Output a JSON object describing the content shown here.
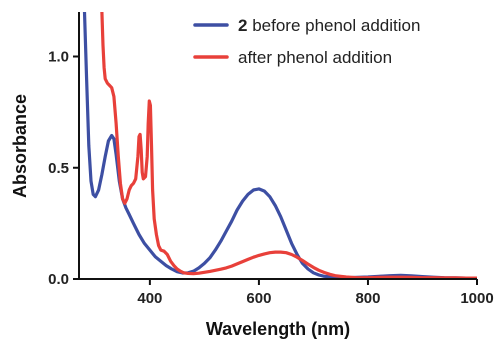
{
  "chart_data": {
    "type": "line",
    "xlabel": "Wavelength (nm)",
    "ylabel": "Absorbance",
    "xlim": [
      270,
      1000
    ],
    "ylim": [
      0,
      1.2
    ],
    "x_ticks": [
      {
        "value": 400,
        "label": "400"
      },
      {
        "value": 600,
        "label": "600"
      },
      {
        "value": 800,
        "label": "800"
      },
      {
        "value": 1000,
        "label": "1000"
      }
    ],
    "y_ticks": [
      {
        "value": 0,
        "label": "0.0"
      },
      {
        "value": 0.5,
        "label": "0.5"
      },
      {
        "value": 1.0,
        "label": "1.0"
      }
    ],
    "grid": false,
    "legend": {
      "placement": "top-right",
      "entries": [
        {
          "prefix": "2",
          "text": " before phenol addition",
          "color": "#3d4fa3"
        },
        {
          "prefix": "",
          "text": "after phenol addition",
          "color": "#e8403a"
        }
      ]
    },
    "series": [
      {
        "color": "#3d4fa3",
        "points": [
          [
            280,
            1.2
          ],
          [
            284,
            0.9
          ],
          [
            288,
            0.6
          ],
          [
            292,
            0.44
          ],
          [
            296,
            0.38
          ],
          [
            300,
            0.37
          ],
          [
            306,
            0.4
          ],
          [
            312,
            0.47
          ],
          [
            318,
            0.55
          ],
          [
            324,
            0.62
          ],
          [
            330,
            0.645
          ],
          [
            334,
            0.63
          ],
          [
            338,
            0.56
          ],
          [
            344,
            0.44
          ],
          [
            350,
            0.36
          ],
          [
            356,
            0.32
          ],
          [
            362,
            0.29
          ],
          [
            370,
            0.25
          ],
          [
            380,
            0.2
          ],
          [
            390,
            0.16
          ],
          [
            400,
            0.13
          ],
          [
            410,
            0.1
          ],
          [
            420,
            0.08
          ],
          [
            430,
            0.06
          ],
          [
            440,
            0.045
          ],
          [
            450,
            0.033
          ],
          [
            460,
            0.027
          ],
          [
            470,
            0.028
          ],
          [
            480,
            0.035
          ],
          [
            490,
            0.05
          ],
          [
            500,
            0.07
          ],
          [
            510,
            0.095
          ],
          [
            520,
            0.13
          ],
          [
            530,
            0.17
          ],
          [
            540,
            0.215
          ],
          [
            550,
            0.26
          ],
          [
            560,
            0.31
          ],
          [
            570,
            0.35
          ],
          [
            580,
            0.38
          ],
          [
            590,
            0.4
          ],
          [
            600,
            0.405
          ],
          [
            610,
            0.395
          ],
          [
            620,
            0.37
          ],
          [
            630,
            0.33
          ],
          [
            640,
            0.28
          ],
          [
            650,
            0.22
          ],
          [
            660,
            0.16
          ],
          [
            670,
            0.11
          ],
          [
            680,
            0.07
          ],
          [
            690,
            0.045
          ],
          [
            700,
            0.028
          ],
          [
            710,
            0.018
          ],
          [
            720,
            0.012
          ],
          [
            740,
            0.008
          ],
          [
            760,
            0.006
          ],
          [
            780,
            0.007
          ],
          [
            800,
            0.009
          ],
          [
            820,
            0.012
          ],
          [
            840,
            0.015
          ],
          [
            860,
            0.016
          ],
          [
            880,
            0.014
          ],
          [
            900,
            0.011
          ],
          [
            920,
            0.008
          ],
          [
            940,
            0.006
          ],
          [
            960,
            0.005
          ],
          [
            980,
            0.004
          ],
          [
            1000,
            0.004
          ]
        ]
      },
      {
        "color": "#e8403a",
        "points": [
          [
            312,
            1.2
          ],
          [
            314,
            1.05
          ],
          [
            316,
            0.95
          ],
          [
            318,
            0.9
          ],
          [
            322,
            0.88
          ],
          [
            326,
            0.87
          ],
          [
            330,
            0.86
          ],
          [
            334,
            0.82
          ],
          [
            338,
            0.7
          ],
          [
            342,
            0.55
          ],
          [
            346,
            0.43
          ],
          [
            350,
            0.36
          ],
          [
            354,
            0.34
          ],
          [
            358,
            0.36
          ],
          [
            362,
            0.4
          ],
          [
            366,
            0.42
          ],
          [
            370,
            0.43
          ],
          [
            374,
            0.45
          ],
          [
            378,
            0.55
          ],
          [
            380,
            0.64
          ],
          [
            382,
            0.65
          ],
          [
            384,
            0.58
          ],
          [
            386,
            0.48
          ],
          [
            388,
            0.45
          ],
          [
            392,
            0.46
          ],
          [
            395,
            0.55
          ],
          [
            397,
            0.7
          ],
          [
            399,
            0.8
          ],
          [
            401,
            0.78
          ],
          [
            403,
            0.6
          ],
          [
            405,
            0.4
          ],
          [
            408,
            0.27
          ],
          [
            412,
            0.2
          ],
          [
            416,
            0.15
          ],
          [
            420,
            0.13
          ],
          [
            426,
            0.125
          ],
          [
            432,
            0.11
          ],
          [
            438,
            0.08
          ],
          [
            444,
            0.06
          ],
          [
            450,
            0.045
          ],
          [
            456,
            0.035
          ],
          [
            462,
            0.028
          ],
          [
            470,
            0.025
          ],
          [
            480,
            0.024
          ],
          [
            490,
            0.026
          ],
          [
            500,
            0.03
          ],
          [
            510,
            0.034
          ],
          [
            520,
            0.039
          ],
          [
            530,
            0.044
          ],
          [
            540,
            0.05
          ],
          [
            550,
            0.058
          ],
          [
            560,
            0.068
          ],
          [
            570,
            0.078
          ],
          [
            580,
            0.088
          ],
          [
            590,
            0.098
          ],
          [
            600,
            0.106
          ],
          [
            610,
            0.113
          ],
          [
            620,
            0.118
          ],
          [
            630,
            0.121
          ],
          [
            640,
            0.121
          ],
          [
            650,
            0.118
          ],
          [
            660,
            0.11
          ],
          [
            670,
            0.098
          ],
          [
            680,
            0.083
          ],
          [
            690,
            0.067
          ],
          [
            700,
            0.052
          ],
          [
            710,
            0.039
          ],
          [
            720,
            0.029
          ],
          [
            730,
            0.021
          ],
          [
            740,
            0.015
          ],
          [
            760,
            0.009
          ],
          [
            780,
            0.006
          ],
          [
            800,
            0.006
          ],
          [
            820,
            0.007
          ],
          [
            840,
            0.008
          ],
          [
            860,
            0.008
          ],
          [
            880,
            0.007
          ],
          [
            900,
            0.006
          ],
          [
            920,
            0.006
          ],
          [
            940,
            0.005
          ],
          [
            960,
            0.005
          ],
          [
            980,
            0.004
          ],
          [
            1000,
            0.004
          ]
        ]
      }
    ]
  }
}
